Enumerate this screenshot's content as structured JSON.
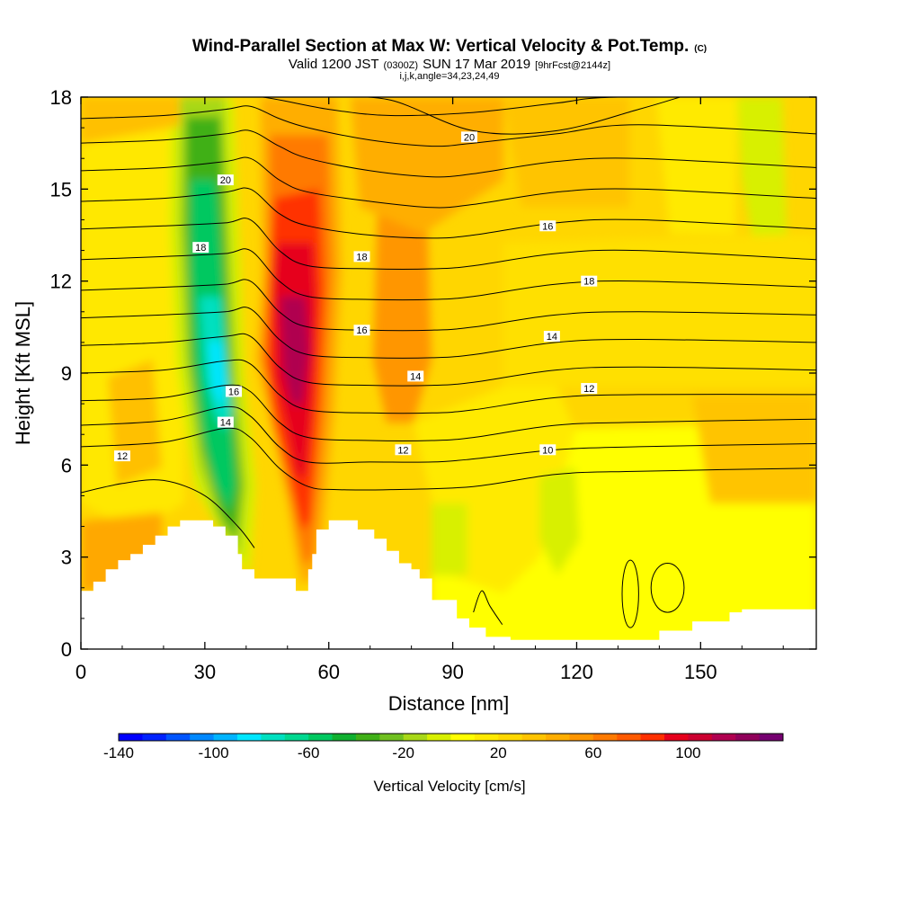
{
  "chart_data": {
    "type": "heatmap",
    "title": "Wind-Parallel Section at Max W: Vertical Velocity & Pot.Temp.",
    "title_mark": "(C)",
    "subtitle": {
      "prefix": "Valid 1200 JST",
      "utc": "(0300Z)",
      "date": "SUN 17 Mar 2019",
      "forecast": "[9hrFcst@2144z]"
    },
    "params_line": "i,j,k,angle=34,23,24,49",
    "xlabel": "Distance [nm]",
    "ylabel": "Height [Kft MSL]",
    "xlim": [
      0,
      178
    ],
    "ylim": [
      0,
      18
    ],
    "x_ticks": [
      "0",
      "30",
      "60",
      "90",
      "120",
      "150"
    ],
    "y_ticks": [
      "0",
      "3",
      "6",
      "9",
      "12",
      "15",
      "18"
    ],
    "colorbar": {
      "label": "Vertical Velocity [cm/s]",
      "min": -140,
      "step": 10,
      "tick_labels": [
        "-140",
        "-100",
        "-60",
        "-20",
        "20",
        "60",
        "100"
      ],
      "colors": [
        "#0000ff",
        "#0022ff",
        "#0055ff",
        "#0088ff",
        "#00b4ff",
        "#00e6ff",
        "#00e0c0",
        "#00d890",
        "#00c860",
        "#10b030",
        "#40b018",
        "#70c020",
        "#a8d818",
        "#d8f000",
        "#ffff00",
        "#ffea00",
        "#ffd800",
        "#ffc400",
        "#ffae00",
        "#ff9600",
        "#ff7a00",
        "#ff5a00",
        "#ff3000",
        "#e6001c",
        "#cc0030",
        "#b00050",
        "#90005a",
        "#750070"
      ]
    },
    "theta_contours": [
      {
        "label": "12",
        "label_at": [
          10,
          6.3
        ],
        "points": [
          [
            0,
            6.6
          ],
          [
            20,
            6.75
          ],
          [
            35,
            7.2
          ],
          [
            41,
            6.9
          ],
          [
            48,
            5.9
          ],
          [
            55,
            5.3
          ],
          [
            62,
            5.2
          ],
          [
            75,
            5.2
          ],
          [
            95,
            5.3
          ],
          [
            115,
            5.7
          ],
          [
            135,
            5.8
          ],
          [
            178,
            5.9
          ]
        ]
      },
      {
        "label": "14",
        "label_at": [
          35,
          7.4
        ],
        "points": [
          [
            0,
            7.3
          ],
          [
            20,
            7.45
          ],
          [
            35,
            7.9
          ],
          [
            41,
            7.6
          ],
          [
            48,
            6.6
          ],
          [
            55,
            6.1
          ],
          [
            70,
            6.1
          ],
          [
            85,
            6.1
          ],
          [
            95,
            6.2
          ],
          [
            115,
            6.5
          ],
          [
            135,
            6.6
          ],
          [
            178,
            6.7
          ]
        ]
      },
      {
        "label": "16",
        "label_at": [
          37,
          8.4
        ],
        "points": [
          [
            0,
            8.1
          ],
          [
            20,
            8.2
          ],
          [
            35,
            8.6
          ],
          [
            41,
            8.4
          ],
          [
            48,
            7.4
          ],
          [
            55,
            6.9
          ],
          [
            70,
            6.8
          ],
          [
            85,
            6.8
          ],
          [
            95,
            6.9
          ],
          [
            115,
            7.3
          ],
          [
            135,
            7.4
          ],
          [
            178,
            7.5
          ]
        ]
      },
      {
        "label": "12",
        "label_at": [
          78,
          6.5
        ],
        "points": [
          [
            0,
            9.0
          ],
          [
            20,
            9.1
          ],
          [
            35,
            9.4
          ],
          [
            41,
            9.3
          ],
          [
            48,
            8.3
          ],
          [
            55,
            7.8
          ],
          [
            70,
            7.7
          ],
          [
            85,
            7.7
          ],
          [
            95,
            7.8
          ],
          [
            115,
            8.2
          ],
          [
            135,
            8.3
          ],
          [
            178,
            8.3
          ]
        ]
      },
      {
        "label": "10",
        "label_at": [
          113,
          6.5
        ],
        "points": [
          [
            0,
            9.9
          ],
          [
            20,
            10.0
          ],
          [
            35,
            10.2
          ],
          [
            41,
            10.2
          ],
          [
            48,
            9.2
          ],
          [
            55,
            8.7
          ],
          [
            70,
            8.6
          ],
          [
            85,
            8.6
          ],
          [
            95,
            8.7
          ],
          [
            115,
            9.1
          ],
          [
            135,
            9.2
          ],
          [
            178,
            9.1
          ]
        ]
      },
      {
        "label": "14",
        "label_at": [
          81,
          8.9
        ],
        "points": [
          [
            0,
            10.8
          ],
          [
            20,
            10.9
          ],
          [
            35,
            11.0
          ],
          [
            41,
            11.1
          ],
          [
            48,
            10.1
          ],
          [
            55,
            9.6
          ],
          [
            70,
            9.5
          ],
          [
            85,
            9.5
          ],
          [
            95,
            9.6
          ],
          [
            115,
            10.0
          ],
          [
            135,
            10.1
          ],
          [
            178,
            10.0
          ]
        ]
      },
      {
        "label": "12",
        "label_at": [
          123,
          8.5
        ],
        "points": [
          [
            0,
            11.7
          ],
          [
            20,
            11.8
          ],
          [
            35,
            11.9
          ],
          [
            41,
            12.0
          ],
          [
            48,
            11.0
          ],
          [
            55,
            10.5
          ],
          [
            70,
            10.4
          ],
          [
            85,
            10.4
          ],
          [
            95,
            10.5
          ],
          [
            115,
            10.9
          ],
          [
            135,
            11.0
          ],
          [
            178,
            10.9
          ]
        ]
      },
      {
        "label": "16",
        "label_at": [
          68,
          10.4
        ],
        "points": [
          [
            0,
            12.7
          ],
          [
            20,
            12.8
          ],
          [
            35,
            12.9
          ],
          [
            41,
            13.0
          ],
          [
            48,
            12.0
          ],
          [
            55,
            11.5
          ],
          [
            70,
            11.4
          ],
          [
            85,
            11.4
          ],
          [
            95,
            11.5
          ],
          [
            115,
            11.9
          ],
          [
            135,
            12.0
          ],
          [
            178,
            11.8
          ]
        ]
      },
      {
        "label": "14",
        "label_at": [
          114,
          10.2
        ],
        "points": [
          [
            0,
            13.7
          ],
          [
            20,
            13.8
          ],
          [
            35,
            13.9
          ],
          [
            41,
            14.0
          ],
          [
            48,
            13.0
          ],
          [
            55,
            12.5
          ],
          [
            70,
            12.4
          ],
          [
            85,
            12.4
          ],
          [
            95,
            12.5
          ],
          [
            115,
            12.9
          ],
          [
            135,
            13.0
          ],
          [
            178,
            12.7
          ]
        ]
      },
      {
        "label": "18",
        "label_at": [
          29,
          13.1
        ],
        "points": [
          [
            0,
            14.6
          ],
          [
            20,
            14.7
          ],
          [
            35,
            14.9
          ],
          [
            41,
            15.0
          ],
          [
            48,
            14.2
          ],
          [
            55,
            13.8
          ],
          [
            70,
            13.5
          ],
          [
            85,
            13.4
          ],
          [
            95,
            13.5
          ],
          [
            115,
            13.9
          ],
          [
            135,
            14.0
          ],
          [
            178,
            13.7
          ]
        ]
      },
      {
        "label": "18",
        "label_at": [
          68,
          12.8
        ],
        "points": [
          [
            0,
            15.6
          ],
          [
            20,
            15.7
          ],
          [
            35,
            15.9
          ],
          [
            41,
            16.0
          ],
          [
            48,
            15.3
          ],
          [
            55,
            14.9
          ],
          [
            70,
            14.6
          ],
          [
            85,
            14.4
          ],
          [
            95,
            14.5
          ],
          [
            115,
            14.9
          ],
          [
            135,
            15.0
          ],
          [
            178,
            14.7
          ]
        ]
      },
      {
        "label": "16",
        "label_at": [
          113,
          13.8
        ],
        "points": [
          [
            0,
            16.5
          ],
          [
            20,
            16.6
          ],
          [
            35,
            16.8
          ],
          [
            41,
            16.9
          ],
          [
            48,
            16.4
          ],
          [
            55,
            16.0
          ],
          [
            70,
            15.6
          ],
          [
            85,
            15.4
          ],
          [
            95,
            15.5
          ],
          [
            115,
            15.9
          ],
          [
            135,
            16.0
          ],
          [
            178,
            15.7
          ]
        ]
      },
      {
        "label": "18",
        "label_at": [
          123,
          12.0
        ],
        "points": [
          [
            0,
            17.3
          ],
          [
            20,
            17.4
          ],
          [
            35,
            17.6
          ],
          [
            41,
            17.7
          ],
          [
            48,
            17.3
          ],
          [
            55,
            17.0
          ],
          [
            70,
            16.6
          ],
          [
            85,
            16.4
          ],
          [
            95,
            16.5
          ],
          [
            115,
            16.8
          ],
          [
            135,
            17.1
          ],
          [
            178,
            16.8
          ]
        ]
      },
      {
        "label": "20",
        "label_at": [
          35,
          15.3
        ],
        "points": [
          [
            0,
            18.0
          ],
          [
            20,
            18.0
          ],
          [
            35,
            18.0
          ],
          [
            44,
            18.0
          ],
          [
            60,
            17.6
          ],
          [
            75,
            17.4
          ],
          [
            95,
            17.5
          ],
          [
            115,
            17.8
          ],
          [
            130,
            18.0
          ],
          [
            178,
            18.0
          ]
        ]
      },
      {
        "label": "20",
        "label_at": [
          94,
          16.7
        ],
        "points": [
          [
            60,
            18.0
          ],
          [
            75,
            17.9
          ],
          [
            95,
            16.9
          ],
          [
            115,
            16.9
          ],
          [
            135,
            17.6
          ],
          [
            145,
            18.0
          ]
        ]
      },
      {
        "label": "",
        "label_at": null,
        "points": [
          [
            0,
            5.1
          ],
          [
            10,
            5.4
          ],
          [
            20,
            5.5
          ],
          [
            30,
            5.0
          ],
          [
            38,
            4.0
          ],
          [
            42,
            3.3
          ]
        ]
      },
      {
        "label": "",
        "label_at": null,
        "points": [
          [
            95,
            1.2
          ],
          [
            97,
            1.9
          ],
          [
            99,
            1.4
          ],
          [
            102,
            0.8
          ]
        ]
      }
    ],
    "small_contours": [
      {
        "cx": 133,
        "cy": 1.8,
        "rx": 2.0,
        "ry": 1.1
      },
      {
        "cx": 142,
        "cy": 2.0,
        "rx": 4.0,
        "ry": 0.8
      }
    ],
    "terrain_profile": [
      [
        0,
        1.9
      ],
      [
        3,
        1.9
      ],
      [
        3,
        2.2
      ],
      [
        6,
        2.2
      ],
      [
        6,
        2.6
      ],
      [
        9,
        2.6
      ],
      [
        9,
        2.9
      ],
      [
        12,
        2.9
      ],
      [
        12,
        3.1
      ],
      [
        15,
        3.1
      ],
      [
        15,
        3.4
      ],
      [
        18,
        3.4
      ],
      [
        18,
        3.7
      ],
      [
        21,
        3.7
      ],
      [
        21,
        4.0
      ],
      [
        24,
        4.0
      ],
      [
        24,
        4.2
      ],
      [
        32,
        4.2
      ],
      [
        32,
        4.0
      ],
      [
        35,
        4.0
      ],
      [
        35,
        3.7
      ],
      [
        38,
        3.7
      ],
      [
        38,
        3.1
      ],
      [
        39,
        3.1
      ],
      [
        39,
        2.6
      ],
      [
        42,
        2.6
      ],
      [
        42,
        2.3
      ],
      [
        52,
        2.3
      ],
      [
        52,
        1.9
      ],
      [
        55,
        1.9
      ],
      [
        55,
        2.6
      ],
      [
        56,
        2.6
      ],
      [
        56,
        3.1
      ],
      [
        57,
        3.1
      ],
      [
        57,
        3.9
      ],
      [
        60,
        3.9
      ],
      [
        60,
        4.2
      ],
      [
        67,
        4.2
      ],
      [
        67,
        3.9
      ],
      [
        71,
        3.9
      ],
      [
        71,
        3.6
      ],
      [
        74,
        3.6
      ],
      [
        74,
        3.2
      ],
      [
        77,
        3.2
      ],
      [
        77,
        2.8
      ],
      [
        80,
        2.8
      ],
      [
        80,
        2.6
      ],
      [
        82,
        2.6
      ],
      [
        82,
        2.3
      ],
      [
        85,
        2.3
      ],
      [
        85,
        1.6
      ],
      [
        91,
        1.6
      ],
      [
        91,
        1.0
      ],
      [
        94,
        1.0
      ],
      [
        94,
        0.7
      ],
      [
        98,
        0.7
      ],
      [
        98,
        0.4
      ],
      [
        104,
        0.4
      ],
      [
        104,
        0.3
      ],
      [
        140,
        0.3
      ],
      [
        140,
        0.6
      ],
      [
        148,
        0.6
      ],
      [
        148,
        0.9
      ],
      [
        157,
        0.9
      ],
      [
        157,
        1.2
      ],
      [
        160,
        1.2
      ],
      [
        160,
        1.3
      ],
      [
        178,
        1.3
      ]
    ]
  }
}
